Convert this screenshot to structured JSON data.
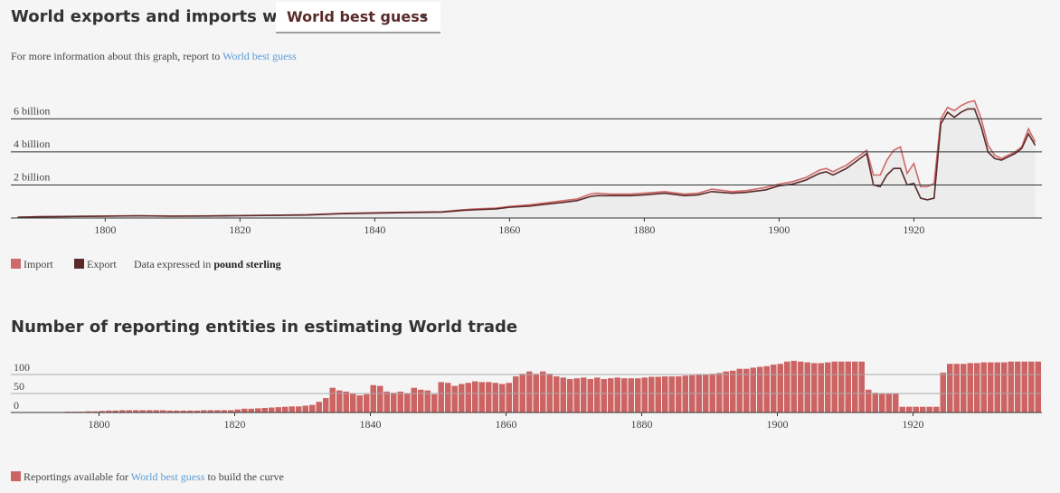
{
  "header": {
    "title": "World exports and imports with",
    "selector": "World best guess",
    "info": "For more information about this graph, report to",
    "info_link": "World best guess"
  },
  "chart_data": [
    {
      "type": "line",
      "x": [
        1787,
        1790,
        1795,
        1800,
        1805,
        1810,
        1815,
        1820,
        1825,
        1830,
        1835,
        1840,
        1845,
        1850,
        1853,
        1855,
        1858,
        1860,
        1863,
        1865,
        1868,
        1870,
        1872,
        1873,
        1875,
        1878,
        1880,
        1883,
        1886,
        1888,
        1890,
        1893,
        1895,
        1898,
        1900,
        1902,
        1904,
        1906,
        1907,
        1908,
        1910,
        1911,
        1912,
        1913,
        1914,
        1915,
        1916,
        1917,
        1918,
        1919,
        1920,
        1921,
        1922,
        1923,
        1924,
        1925,
        1926,
        1927,
        1928,
        1929,
        1930,
        1931,
        1932,
        1933,
        1934,
        1935,
        1936,
        1937,
        1938
      ],
      "series": [
        {
          "name": "Import",
          "color": "#d06a6a",
          "values": [
            0.05,
            0.08,
            0.1,
            0.12,
            0.14,
            0.12,
            0.13,
            0.15,
            0.17,
            0.2,
            0.28,
            0.32,
            0.35,
            0.38,
            0.5,
            0.55,
            0.6,
            0.7,
            0.8,
            0.9,
            1.05,
            1.15,
            1.45,
            1.5,
            1.45,
            1.45,
            1.5,
            1.6,
            1.45,
            1.5,
            1.75,
            1.6,
            1.65,
            1.85,
            2.05,
            2.2,
            2.45,
            2.9,
            3.0,
            2.8,
            3.2,
            3.5,
            3.8,
            4.1,
            2.6,
            2.6,
            3.5,
            4.1,
            4.3,
            2.7,
            3.3,
            1.9,
            1.9,
            2.1,
            6.0,
            6.7,
            6.5,
            6.8,
            7.0,
            7.1,
            6.0,
            4.4,
            3.8,
            3.6,
            3.8,
            4.0,
            4.3,
            5.4,
            4.6
          ]
        },
        {
          "name": "Export",
          "color": "#5a2a2a",
          "values": [
            0.04,
            0.07,
            0.09,
            0.11,
            0.13,
            0.11,
            0.12,
            0.14,
            0.16,
            0.18,
            0.26,
            0.3,
            0.33,
            0.36,
            0.46,
            0.5,
            0.55,
            0.65,
            0.72,
            0.82,
            0.95,
            1.05,
            1.3,
            1.35,
            1.35,
            1.35,
            1.4,
            1.5,
            1.35,
            1.4,
            1.6,
            1.5,
            1.55,
            1.7,
            1.95,
            2.05,
            2.3,
            2.7,
            2.8,
            2.6,
            3.0,
            3.3,
            3.6,
            3.9,
            2.0,
            1.9,
            2.6,
            3.0,
            3.0,
            2.0,
            2.1,
            1.2,
            1.1,
            1.2,
            5.7,
            6.4,
            6.1,
            6.4,
            6.6,
            6.6,
            5.5,
            4.0,
            3.6,
            3.5,
            3.7,
            3.9,
            4.2,
            5.1,
            4.4
          ]
        }
      ],
      "area_color": "#ececec",
      "xlim": [
        1786,
        1939
      ],
      "xticks": [
        1800,
        1820,
        1840,
        1860,
        1880,
        1900,
        1920
      ],
      "ylim": [
        0,
        7.5
      ],
      "yticks": [
        0,
        {
          "value": 2,
          "label": "2 billion"
        },
        {
          "value": 4,
          "label": "4 billion"
        },
        {
          "value": 6,
          "label": "6 billion"
        }
      ],
      "grid": true,
      "note": "Data expressed in",
      "unit": "pound sterling"
    },
    {
      "type": "bar",
      "title": "Number of reporting entities in estimating World trade",
      "color": "#cd6464",
      "x": [
        1787,
        1788,
        1789,
        1790,
        1791,
        1792,
        1793,
        1794,
        1795,
        1796,
        1797,
        1798,
        1799,
        1800,
        1801,
        1802,
        1803,
        1804,
        1805,
        1806,
        1807,
        1808,
        1809,
        1810,
        1811,
        1812,
        1813,
        1814,
        1815,
        1816,
        1817,
        1818,
        1819,
        1820,
        1821,
        1822,
        1823,
        1824,
        1825,
        1826,
        1827,
        1828,
        1829,
        1830,
        1831,
        1832,
        1833,
        1834,
        1835,
        1836,
        1837,
        1838,
        1839,
        1840,
        1841,
        1842,
        1843,
        1844,
        1845,
        1846,
        1847,
        1848,
        1849,
        1850,
        1851,
        1852,
        1853,
        1854,
        1855,
        1856,
        1857,
        1858,
        1859,
        1860,
        1861,
        1862,
        1863,
        1864,
        1865,
        1866,
        1867,
        1868,
        1869,
        1870,
        1871,
        1872,
        1873,
        1874,
        1875,
        1876,
        1877,
        1878,
        1879,
        1880,
        1881,
        1882,
        1883,
        1884,
        1885,
        1886,
        1887,
        1888,
        1889,
        1890,
        1891,
        1892,
        1893,
        1894,
        1895,
        1896,
        1897,
        1898,
        1899,
        1900,
        1901,
        1902,
        1903,
        1904,
        1905,
        1906,
        1907,
        1908,
        1909,
        1910,
        1911,
        1912,
        1913,
        1914,
        1915,
        1916,
        1917,
        1918,
        1919,
        1920,
        1921,
        1922,
        1923,
        1924,
        1925,
        1926,
        1927,
        1928,
        1929,
        1930,
        1931,
        1932,
        1933,
        1934,
        1935,
        1936,
        1937,
        1938
      ],
      "values": [
        1,
        1,
        1,
        1,
        1,
        1,
        1,
        1,
        2,
        2,
        2,
        3,
        3,
        4,
        5,
        5,
        6,
        6,
        6,
        6,
        6,
        6,
        6,
        5,
        5,
        5,
        5,
        5,
        6,
        6,
        6,
        6,
        6,
        8,
        10,
        10,
        11,
        12,
        13,
        14,
        15,
        16,
        16,
        18,
        20,
        28,
        38,
        65,
        58,
        55,
        50,
        45,
        48,
        72,
        70,
        55,
        52,
        55,
        50,
        65,
        60,
        58,
        48,
        80,
        78,
        70,
        75,
        78,
        82,
        80,
        80,
        78,
        75,
        78,
        95,
        102,
        108,
        102,
        108,
        102,
        95,
        92,
        88,
        90,
        92,
        88,
        92,
        88,
        90,
        92,
        90,
        90,
        90,
        92,
        94,
        94,
        95,
        95,
        95,
        97,
        98,
        100,
        100,
        102,
        104,
        108,
        110,
        115,
        115,
        118,
        120,
        122,
        126,
        128,
        134,
        136,
        134,
        132,
        130,
        130,
        132,
        134,
        134,
        134,
        134,
        134,
        60,
        52,
        50,
        50,
        50,
        15,
        15,
        15,
        15,
        15,
        15,
        105,
        128,
        128,
        128,
        130,
        130,
        132,
        132,
        132,
        132,
        134,
        134,
        134,
        134,
        134
      ],
      "xlim": [
        1787,
        1939
      ],
      "xticks": [
        1800,
        1820,
        1840,
        1860,
        1880,
        1900,
        1920
      ],
      "ylim": [
        0,
        150
      ],
      "yticks": [
        0,
        50,
        100
      ],
      "grid": true,
      "legend": "Reportings available for",
      "legend_link": "World best guess",
      "legend_suffix": "to build the curve"
    }
  ]
}
